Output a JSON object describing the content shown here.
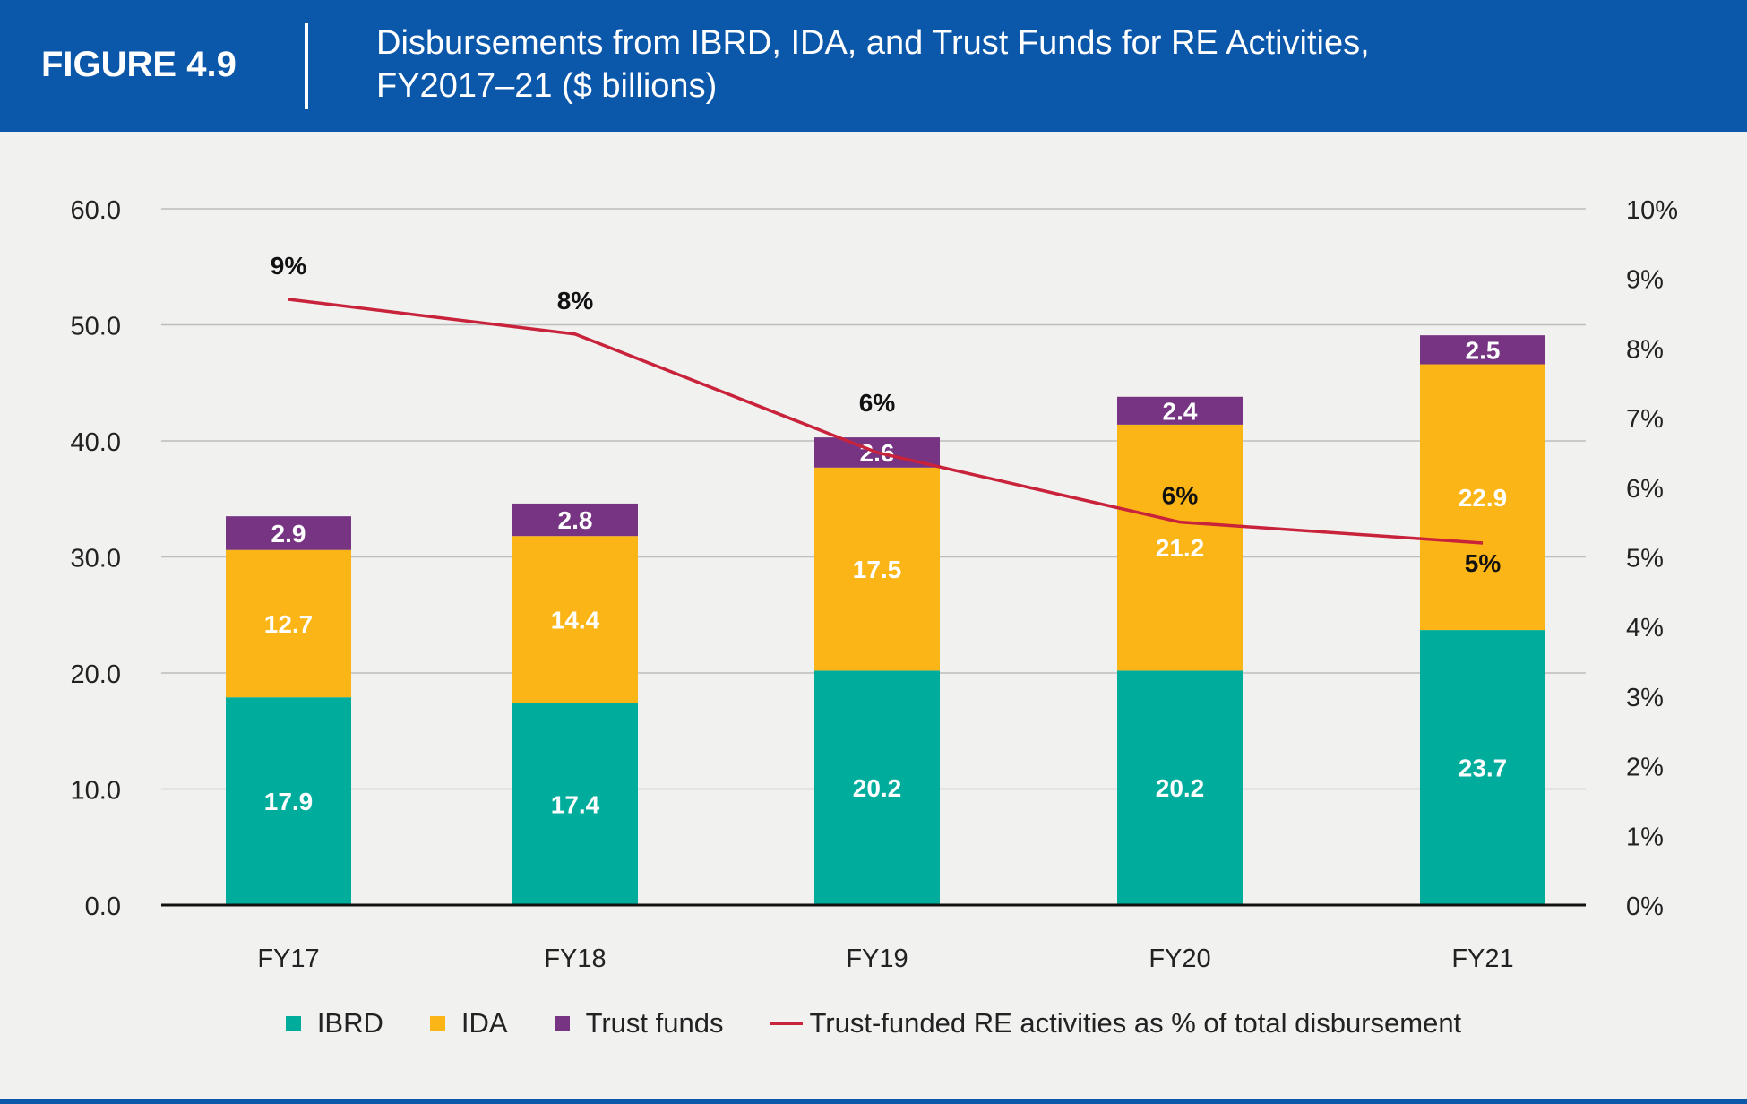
{
  "header": {
    "figure_label": "FIGURE 4.9",
    "title_line1": "Disbursements from IBRD, IDA, and Trust Funds for RE Activities,",
    "title_line2": "FY2017–21 ($ billions)"
  },
  "colors": {
    "header_bg": "#0b57a9",
    "ibrd": "#00ad9c",
    "ida": "#fbb516",
    "trust_funds": "#763483",
    "line": "#c8233b"
  },
  "chart_data": {
    "type": "bar",
    "stacked": true,
    "categories": [
      "FY17",
      "FY18",
      "FY19",
      "FY20",
      "FY21"
    ],
    "series": [
      {
        "name": "IBRD",
        "values": [
          17.9,
          17.4,
          20.2,
          20.2,
          23.7
        ],
        "labels": [
          "17.9",
          "17.4",
          "20.2",
          "20.2",
          "23.7"
        ]
      },
      {
        "name": "IDA",
        "values": [
          12.7,
          14.4,
          17.5,
          21.2,
          22.9
        ],
        "labels": [
          "12.7",
          "14.4",
          "17.5",
          "21.2",
          "22.9"
        ]
      },
      {
        "name": "Trust funds",
        "values": [
          2.9,
          2.8,
          2.6,
          2.4,
          2.5
        ],
        "labels": [
          "2.9",
          "2.8",
          "2.6",
          "2.4",
          "2.5"
        ]
      }
    ],
    "line_series": {
      "name": "Trust-funded RE activities as % of total disbursement",
      "values": [
        8.7,
        8.2,
        6.5,
        5.5,
        5.2
      ],
      "labels": [
        "9%",
        "8%",
        "6%",
        "6%",
        "5%"
      ],
      "axis": "right"
    },
    "ylim": [
      0,
      60
    ],
    "y_ticks": [
      "0.0",
      "10.0",
      "20.0",
      "30.0",
      "40.0",
      "50.0",
      "60.0"
    ],
    "y2lim": [
      0,
      10
    ],
    "y2_ticks": [
      "0%",
      "1%",
      "2%",
      "3%",
      "4%",
      "5%",
      "6%",
      "7%",
      "8%",
      "9%",
      "10%"
    ],
    "grid": true,
    "legend_position": "bottom"
  },
  "legend": {
    "ibrd": "IBRD",
    "ida": "IDA",
    "trust_funds": "Trust funds",
    "line": "Trust-funded RE activities as % of total disbursement"
  }
}
